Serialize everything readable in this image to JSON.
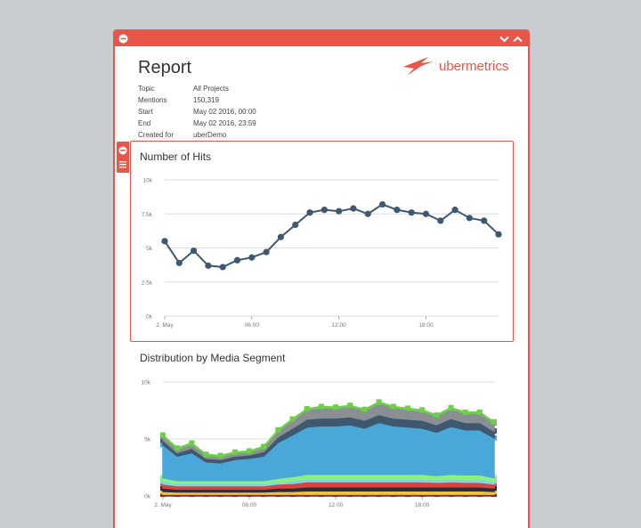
{
  "report": {
    "title": "Report",
    "logo_text": "ubermetrics",
    "meta": [
      {
        "key": "Topic",
        "value": "All Projects"
      },
      {
        "key": "Mentions",
        "value": "150,319"
      },
      {
        "key": "Start",
        "value": "May 02 2016, 00:00"
      },
      {
        "key": "End",
        "value": "May 02 2016, 23:59"
      },
      {
        "key": "Created for",
        "value": "uberDemo"
      }
    ]
  },
  "colors": {
    "accent": "#e8564a",
    "line": "#3e5870"
  },
  "icons": {
    "window_collapse": "minus-circle-icon",
    "expand": "chevron-down-icon",
    "collapse": "chevron-up-icon",
    "widget_remove": "minus-circle-icon",
    "widget_menu": "hamburger-menu-icon",
    "logo": "ubermetrics-logo-icon"
  },
  "chart_data": [
    {
      "type": "line",
      "title": "Number of Hits",
      "ylim": [
        0,
        10000
      ],
      "yticks": [
        "0k",
        "2.5k",
        "5k",
        "7.5k",
        "10k"
      ],
      "xticks": [
        "2. May",
        "06:00",
        "12:00",
        "18:00"
      ],
      "x": [
        "00:00",
        "01:00",
        "02:00",
        "03:00",
        "04:00",
        "05:00",
        "06:00",
        "07:00",
        "08:00",
        "09:00",
        "10:00",
        "11:00",
        "12:00",
        "13:00",
        "14:00",
        "15:00",
        "16:00",
        "17:00",
        "18:00",
        "19:00",
        "20:00",
        "21:00",
        "22:00",
        "23:00"
      ],
      "values": [
        5500,
        3900,
        4800,
        3700,
        3600,
        4100,
        4300,
        4700,
        5800,
        6700,
        7600,
        7800,
        7700,
        7900,
        7500,
        8200,
        7800,
        7600,
        7500,
        7000,
        7800,
        7200,
        7000,
        6000
      ],
      "grid": true
    },
    {
      "type": "area",
      "title": "Distribution by Media Segment",
      "ylim": [
        0,
        10000
      ],
      "yticks": [
        "0k",
        "5k",
        "10k"
      ],
      "xticks": [
        "2. May",
        "06:00",
        "12:00",
        "18:00"
      ],
      "stacked": true,
      "grid": true,
      "series": [
        {
          "color": "#8b2a1e",
          "values": [
            150,
            150,
            150,
            150,
            150,
            150,
            150,
            150,
            150,
            150,
            150,
            150,
            150,
            150,
            150,
            150,
            150,
            150,
            150,
            150,
            150,
            150,
            150,
            150
          ]
        },
        {
          "color": "#e8c838",
          "values": [
            250,
            200,
            200,
            200,
            200,
            200,
            200,
            200,
            250,
            250,
            300,
            300,
            300,
            300,
            300,
            300,
            300,
            300,
            300,
            300,
            300,
            300,
            300,
            250
          ]
        },
        {
          "color": "#2c2c3c",
          "values": [
            300,
            250,
            250,
            250,
            250,
            250,
            250,
            250,
            300,
            300,
            350,
            350,
            350,
            350,
            350,
            350,
            350,
            350,
            350,
            350,
            350,
            350,
            350,
            300
          ]
        },
        {
          "color": "#d8453f",
          "values": [
            350,
            300,
            300,
            300,
            300,
            300,
            300,
            300,
            350,
            400,
            450,
            450,
            450,
            450,
            450,
            450,
            450,
            450,
            450,
            400,
            450,
            400,
            400,
            350
          ]
        },
        {
          "color": "#7cd6f0",
          "values": [
            250,
            200,
            200,
            200,
            200,
            200,
            200,
            200,
            200,
            250,
            250,
            250,
            250,
            250,
            250,
            250,
            250,
            250,
            250,
            250,
            250,
            250,
            250,
            250
          ]
        },
        {
          "color": "#8cf07c",
          "values": [
            300,
            250,
            250,
            250,
            250,
            250,
            250,
            250,
            300,
            350,
            400,
            400,
            400,
            400,
            400,
            400,
            400,
            400,
            400,
            350,
            400,
            400,
            400,
            300
          ]
        },
        {
          "color": "#4aa8d8",
          "values": [
            2900,
            2150,
            2450,
            1650,
            1550,
            1850,
            1950,
            2150,
            3150,
            3650,
            4150,
            4250,
            4250,
            4350,
            4050,
            4550,
            4250,
            4150,
            4050,
            3800,
            4200,
            3950,
            3950,
            3500
          ]
        },
        {
          "color": "#3e5870",
          "values": [
            400,
            300,
            400,
            300,
            300,
            300,
            300,
            400,
            500,
            600,
            700,
            700,
            700,
            700,
            700,
            700,
            700,
            700,
            700,
            650,
            700,
            650,
            650,
            600
          ]
        },
        {
          "color": "#8a8f94",
          "values": [
            350,
            300,
            350,
            250,
            250,
            250,
            250,
            350,
            500,
            700,
            800,
            900,
            850,
            900,
            850,
            1000,
            900,
            850,
            800,
            750,
            850,
            800,
            800,
            700
          ]
        },
        {
          "color": "#6fcf4a",
          "values": [
            100,
            100,
            100,
            100,
            100,
            100,
            100,
            100,
            100,
            100,
            100,
            100,
            100,
            100,
            100,
            100,
            100,
            100,
            100,
            100,
            100,
            100,
            100,
            100
          ]
        }
      ]
    }
  ]
}
